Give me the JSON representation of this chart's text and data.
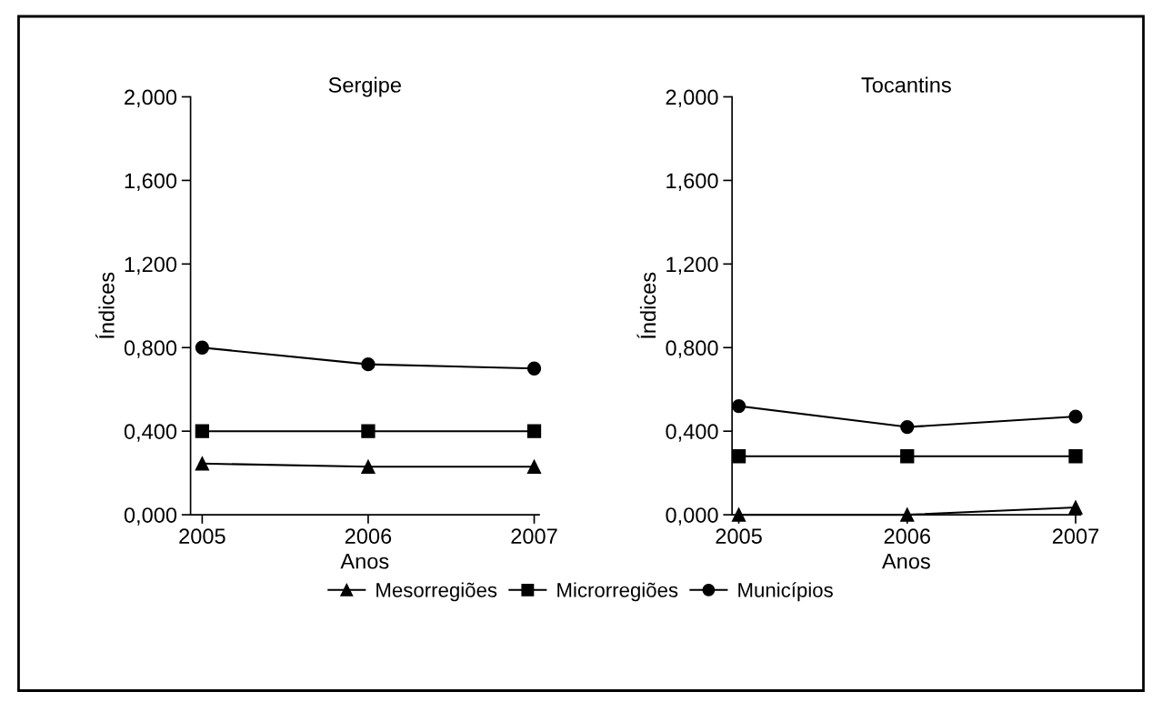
{
  "chart_data": [
    {
      "type": "line",
      "title": "Sergipe",
      "xlabel": "Anos",
      "ylabel": "Índices",
      "x": [
        2005,
        2006,
        2007
      ],
      "xlim": [
        2004.93,
        2007.03
      ],
      "xticks": [
        2005,
        2006,
        2007
      ],
      "ylim": [
        0,
        2
      ],
      "yticks": [
        {
          "value": 0,
          "label": "0,000"
        },
        {
          "value": 0.4,
          "label": "0,400"
        },
        {
          "value": 0.8,
          "label": "0,800"
        },
        {
          "value": 1.2,
          "label": "1,200"
        },
        {
          "value": 1.6,
          "label": "1,600"
        },
        {
          "value": 2,
          "label": "2,000"
        }
      ],
      "grid": false,
      "legend": "bottom",
      "line_style": "solid",
      "series": [
        {
          "name": "Mesorregiões",
          "color": "#000000",
          "marker": "triangle",
          "values": [
            0.245,
            0.23,
            0.23
          ]
        },
        {
          "name": "Microrregiões",
          "color": "#000000",
          "marker": "square",
          "values": [
            0.4,
            0.4,
            0.4
          ]
        },
        {
          "name": "Municípios",
          "color": "#000000",
          "marker": "circle",
          "values": [
            0.8,
            0.72,
            0.7
          ]
        }
      ]
    },
    {
      "type": "line",
      "title": "Tocantins",
      "xlabel": "Anos",
      "ylabel": "Índices",
      "x": [
        2005,
        2006,
        2007
      ],
      "xlim": [
        2004.96,
        2007.03
      ],
      "xticks": [
        2005,
        2006,
        2007
      ],
      "ylim": [
        0,
        2
      ],
      "yticks": [
        {
          "value": 0,
          "label": "0,000"
        },
        {
          "value": 0.4,
          "label": "0,400"
        },
        {
          "value": 0.8,
          "label": "0,800"
        },
        {
          "value": 1.2,
          "label": "1,200"
        },
        {
          "value": 1.6,
          "label": "1,600"
        },
        {
          "value": 2,
          "label": "2,000"
        }
      ],
      "grid": false,
      "line_style": "solid",
      "series": [
        {
          "name": "Mesorregiões",
          "color": "#000000",
          "marker": "triangle",
          "values": [
            0,
            0,
            0.035
          ]
        },
        {
          "name": "Microrregiões",
          "color": "#000000",
          "marker": "square",
          "values": [
            0.28,
            0.28,
            0.28
          ]
        },
        {
          "name": "Municípios",
          "color": "#000000",
          "marker": "circle",
          "values": [
            0.52,
            0.42,
            0.47
          ]
        }
      ]
    }
  ]
}
